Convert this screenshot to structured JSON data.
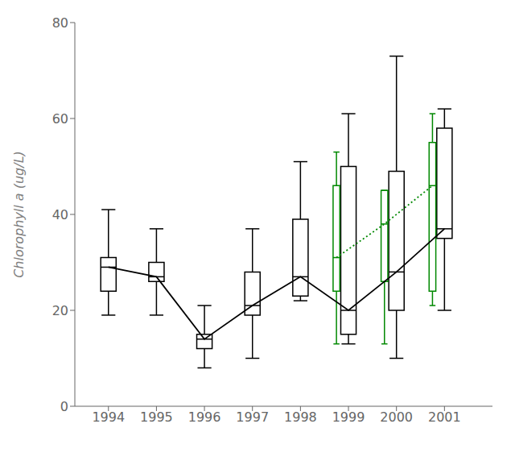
{
  "chart_data": {
    "type": "box",
    "ylabel": "Chlorophyll a (ug/L)",
    "xlim": [
      1993.3,
      2002.0
    ],
    "xticks": [
      1994,
      1995,
      1996,
      1997,
      1998,
      1999,
      2000,
      2001
    ],
    "ylim": [
      0,
      80
    ],
    "yticks": [
      0,
      20,
      40,
      60,
      80
    ],
    "grid": false,
    "series": [
      {
        "type": "box",
        "color": "#000000",
        "x": [
          1994,
          1995,
          1996,
          1997,
          1998,
          1999,
          2000,
          2001
        ],
        "whisker_low": [
          19,
          19,
          8,
          10,
          22,
          13,
          10,
          20
        ],
        "q1": [
          24,
          26,
          12,
          19,
          23,
          15,
          20,
          35
        ],
        "median": [
          29,
          27,
          14,
          21,
          27,
          20,
          28,
          37
        ],
        "q3": [
          31,
          30,
          15,
          28,
          39,
          50,
          49,
          58
        ],
        "whisker_high": [
          41,
          37,
          21,
          37,
          51,
          61,
          73,
          62
        ]
      },
      {
        "type": "box",
        "color": "#008800",
        "x": [
          1999,
          2000,
          2001
        ],
        "whisker_low": [
          13,
          13,
          21
        ],
        "q1": [
          24,
          26,
          24
        ],
        "median": [
          31,
          38,
          46
        ],
        "q3": [
          46,
          45,
          55
        ],
        "whisker_high": [
          53,
          45,
          61
        ]
      },
      {
        "type": "line",
        "color": "#000000",
        "line_style": "solid",
        "x": [
          1994,
          1995,
          1996,
          1997,
          1998,
          1999,
          2000,
          2001
        ],
        "values": [
          29,
          27,
          14,
          21,
          27,
          20,
          28,
          37
        ]
      },
      {
        "type": "line",
        "color": "#008800",
        "line_style": "dotted",
        "x": [
          1999,
          2000,
          2001
        ],
        "values": [
          31,
          38,
          46
        ]
      }
    ]
  }
}
